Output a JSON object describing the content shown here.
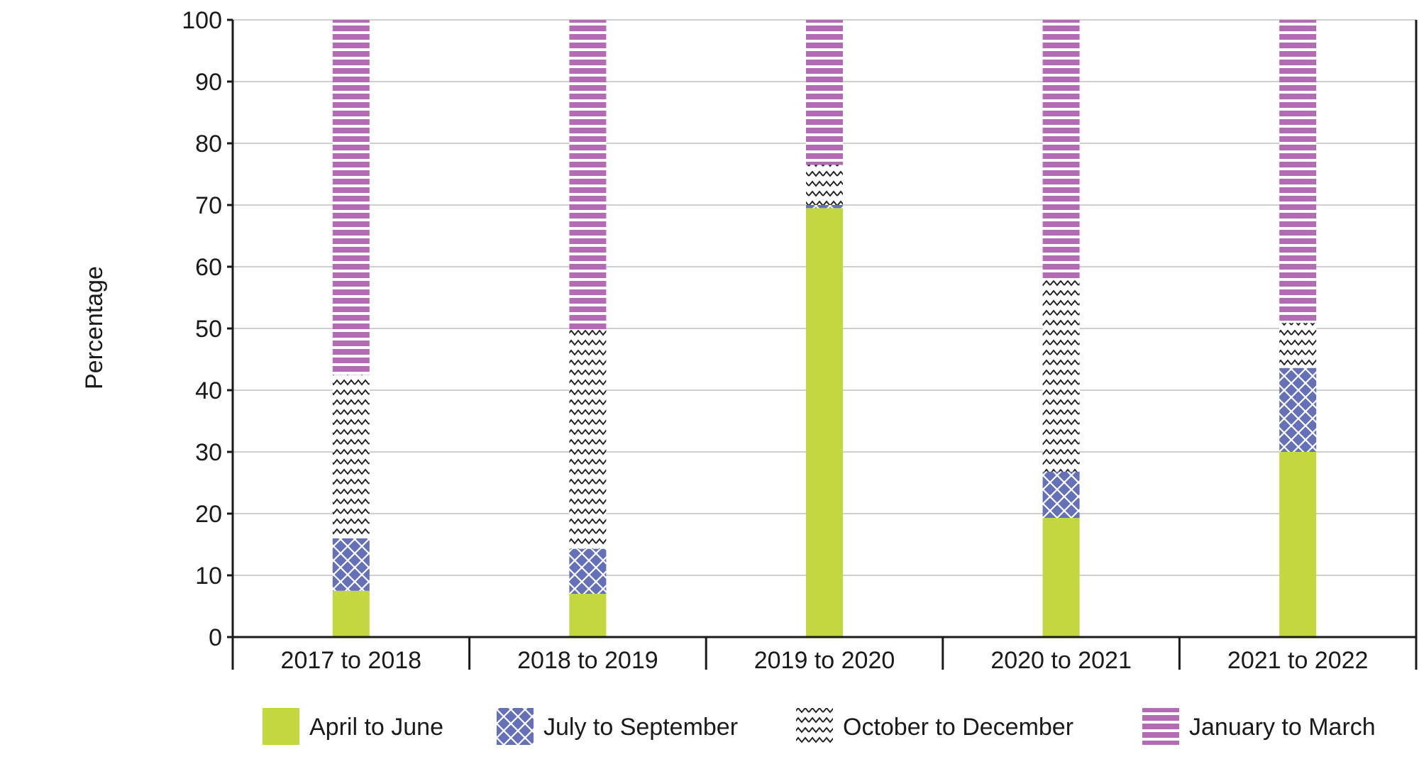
{
  "chart_data": {
    "type": "bar",
    "stacked": true,
    "title": "",
    "xlabel": "",
    "ylabel": "Percentage",
    "ylim": [
      0,
      100
    ],
    "yticks": [
      0,
      10,
      20,
      30,
      40,
      50,
      60,
      70,
      80,
      90,
      100
    ],
    "grid": true,
    "legend_position": "bottom",
    "categories": [
      "2017 to 2018",
      "2018 to 2019",
      "2019 to 2020",
      "2020 to 2021",
      "2021 to 2022"
    ],
    "series": [
      {
        "name": "April to June",
        "color": "#c2d83e",
        "pattern": "solid",
        "values": [
          7.5,
          7,
          69.5,
          19.3,
          30
        ]
      },
      {
        "name": "July to September",
        "color": "#6470b8",
        "pattern": "crosshatch",
        "values": [
          8.5,
          7.3,
          0.5,
          7.5,
          13.6
        ]
      },
      {
        "name": "October to December",
        "color": "#ffffff",
        "pattern": "zigzag",
        "values": [
          26.5,
          35.5,
          6.5,
          31,
          7.3
        ]
      },
      {
        "name": "January to March",
        "color": "#b36bb3",
        "pattern": "horizontal-stripes",
        "values": [
          57.5,
          50.2,
          23.5,
          42.2,
          49.1
        ]
      }
    ]
  }
}
